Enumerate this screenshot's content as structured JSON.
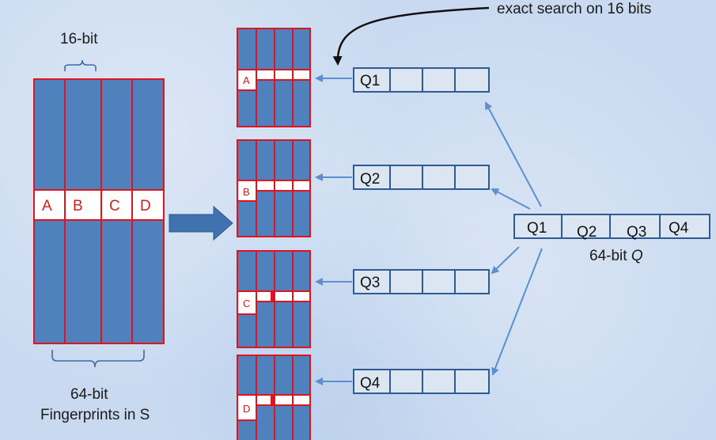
{
  "annotation": "exact search on 16 bits",
  "bit16_label": "16-bit",
  "fingerprints": {
    "line1": "64-bit",
    "line2": "Fingerprints in S",
    "blocks": [
      "A",
      "B",
      "C",
      "D"
    ]
  },
  "tables": [
    {
      "letter": "A",
      "query": "Q1"
    },
    {
      "letter": "B",
      "query": "Q2"
    },
    {
      "letter": "C",
      "query": "Q3"
    },
    {
      "letter": "D",
      "query": "Q4"
    }
  ],
  "query": {
    "blocks": [
      "Q1",
      "Q2",
      "Q3",
      "Q4"
    ],
    "label_prefix": "64-bit ",
    "label_var": "Q"
  },
  "colors": {
    "block_blue": "#4f81bd",
    "border_red": "#e0141e",
    "query_fill": "#dce6f2",
    "query_border": "#2e5b94",
    "arrow_blue": "#5b8fcf",
    "big_arrow": "#3f72ae"
  }
}
